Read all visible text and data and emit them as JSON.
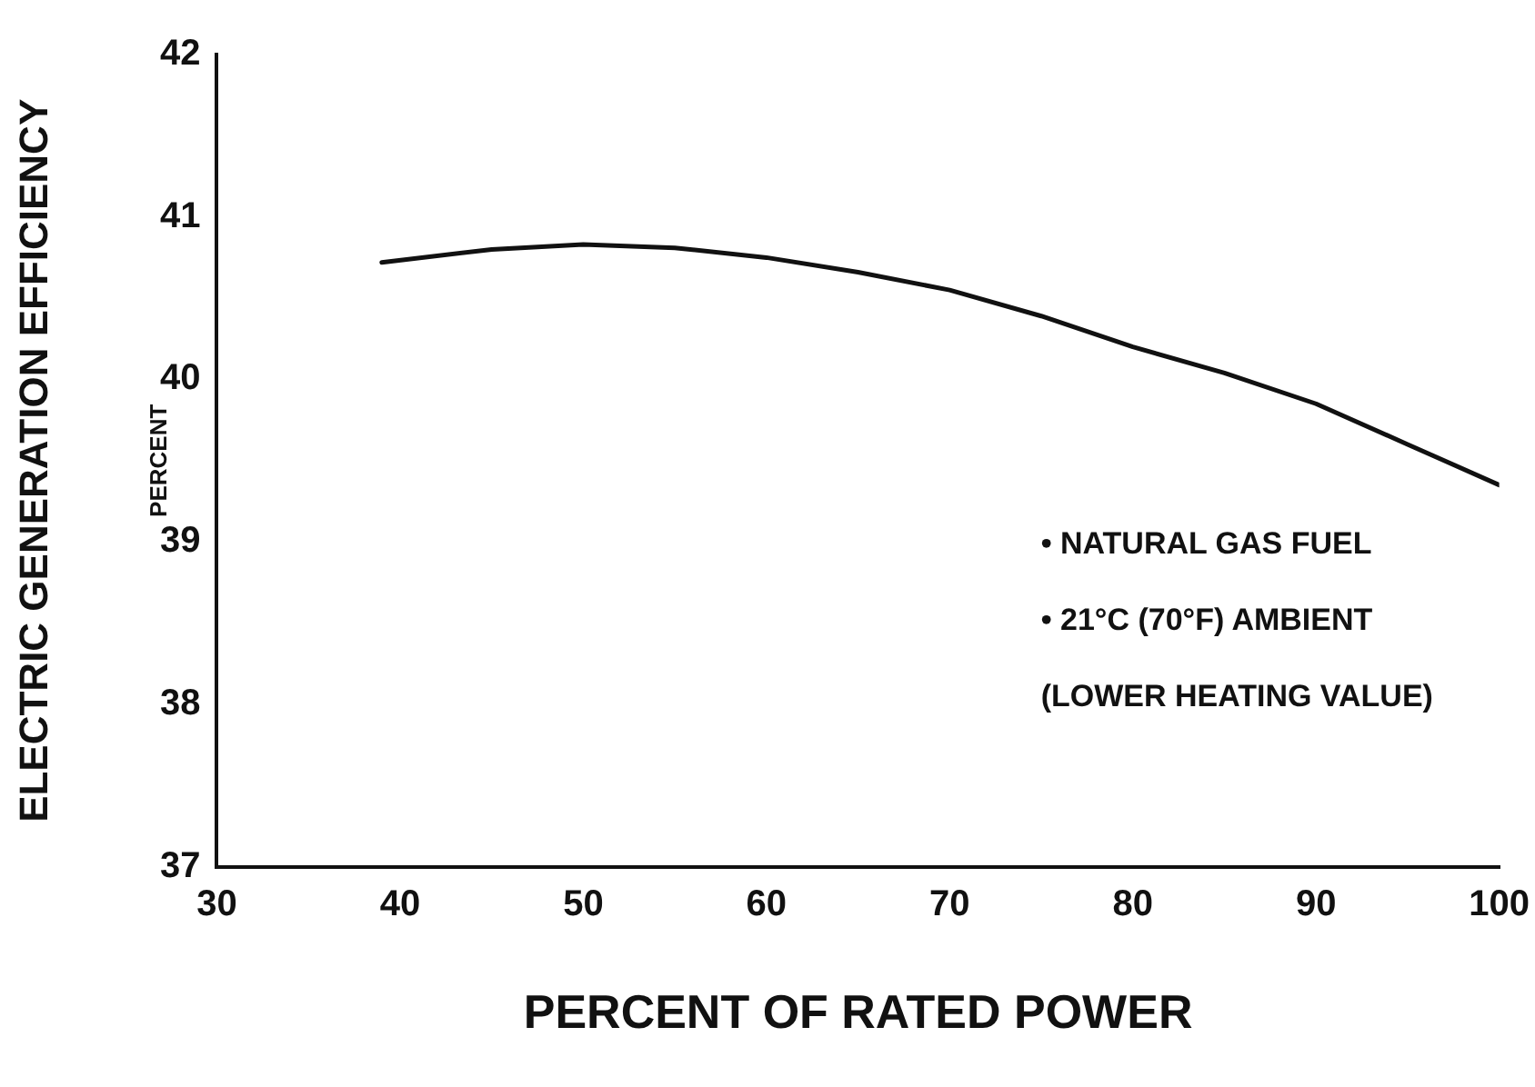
{
  "chart_data": {
    "type": "line",
    "xlabel": "PERCENT OF RATED POWER",
    "ylabel": "ELECTRIC GENERATION EFFICIENCY\nPERCENT",
    "x": [
      39,
      45,
      50,
      55,
      60,
      65,
      70,
      75,
      80,
      85,
      90,
      95,
      100
    ],
    "series": [
      {
        "color": "#111111",
        "values": [
          40.72,
          40.8,
          40.83,
          40.81,
          40.75,
          40.66,
          40.55,
          40.39,
          40.2,
          40.04,
          39.85,
          39.6,
          39.35
        ]
      }
    ],
    "xlim": [
      30,
      100
    ],
    "xticks": [
      30,
      40,
      50,
      60,
      70,
      80,
      90,
      100
    ],
    "ylim": [
      37,
      42
    ],
    "yticks": [
      37,
      38,
      39,
      40,
      41,
      42
    ],
    "grid": false,
    "legend": false,
    "marker": "none",
    "line_style": "solid",
    "annotations": [
      "• NATURAL GAS FUEL",
      "• 21°C (70°F) AMBIENT",
      "(LOWER HEATING VALUE)"
    ]
  }
}
